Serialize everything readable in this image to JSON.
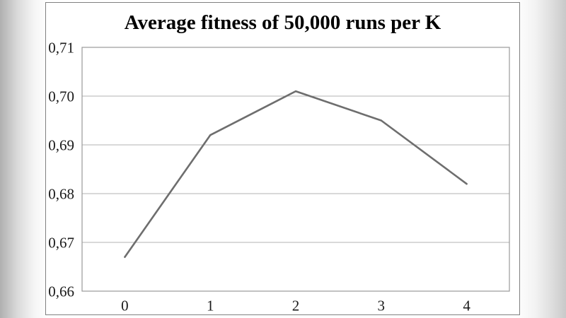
{
  "chart_data": {
    "type": "line",
    "title": "Average fitness of 50,000 runs per K",
    "categories": [
      "0",
      "1",
      "2",
      "3",
      "4"
    ],
    "x": [
      0,
      1,
      2,
      3,
      4
    ],
    "values": [
      0.667,
      0.692,
      0.701,
      0.695,
      0.682
    ],
    "series": [
      {
        "name": "Average fitness",
        "values": [
          0.667,
          0.692,
          0.701,
          0.695,
          0.682
        ]
      }
    ],
    "xlabel": "",
    "ylabel": "",
    "ylim": [
      0.66,
      0.71
    ],
    "y_ticks": [
      0.66,
      0.67,
      0.68,
      0.69,
      0.7,
      0.71
    ],
    "y_tick_labels": [
      "0,66",
      "0,67",
      "0,68",
      "0,69",
      "0,70",
      "0,71"
    ],
    "x_tick_labels": [
      "0",
      "1",
      "2",
      "3",
      "4"
    ],
    "decimal_separator": ",",
    "grid": true,
    "legend": false,
    "markers": false,
    "colors": {
      "line": "#6e6e6e",
      "gridline": "#b3b3b3",
      "plot_border": "#999999",
      "frame_border": "#808080",
      "title_text": "#000000",
      "tick_text": "#1a1a1a",
      "chart_background": "#ffffff"
    }
  }
}
